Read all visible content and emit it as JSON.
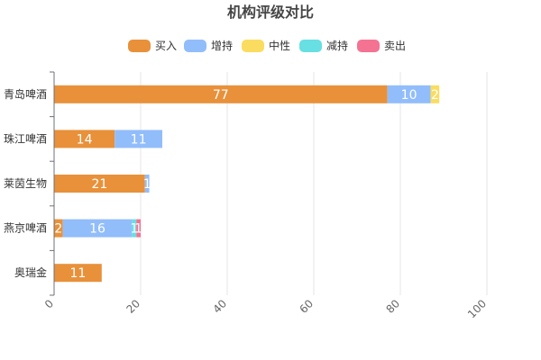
{
  "chart_data": {
    "type": "bar",
    "orientation": "horizontal",
    "stacked": true,
    "title": "机构评级对比",
    "categories": [
      "青岛啤酒",
      "珠江啤酒",
      "莱茵生物",
      "燕京啤酒",
      "奥瑞金"
    ],
    "series": [
      {
        "name": "买入",
        "color": "#e8913a",
        "values": [
          77,
          14,
          21,
          2,
          11
        ]
      },
      {
        "name": "增持",
        "color": "#92bdfb",
        "values": [
          10,
          11,
          1,
          16,
          0
        ]
      },
      {
        "name": "中性",
        "color": "#fadd60",
        "values": [
          2,
          0,
          0,
          0,
          0
        ]
      },
      {
        "name": "减持",
        "color": "#67dfe3",
        "values": [
          0,
          0,
          0,
          1,
          0
        ]
      },
      {
        "name": "卖出",
        "color": "#f47392",
        "values": [
          0,
          0,
          0,
          1,
          0
        ]
      }
    ],
    "xlim": [
      0,
      100
    ],
    "xticks": [
      0,
      20,
      40,
      60,
      80,
      100
    ],
    "xgrid": true,
    "legend_position": "top-center"
  }
}
